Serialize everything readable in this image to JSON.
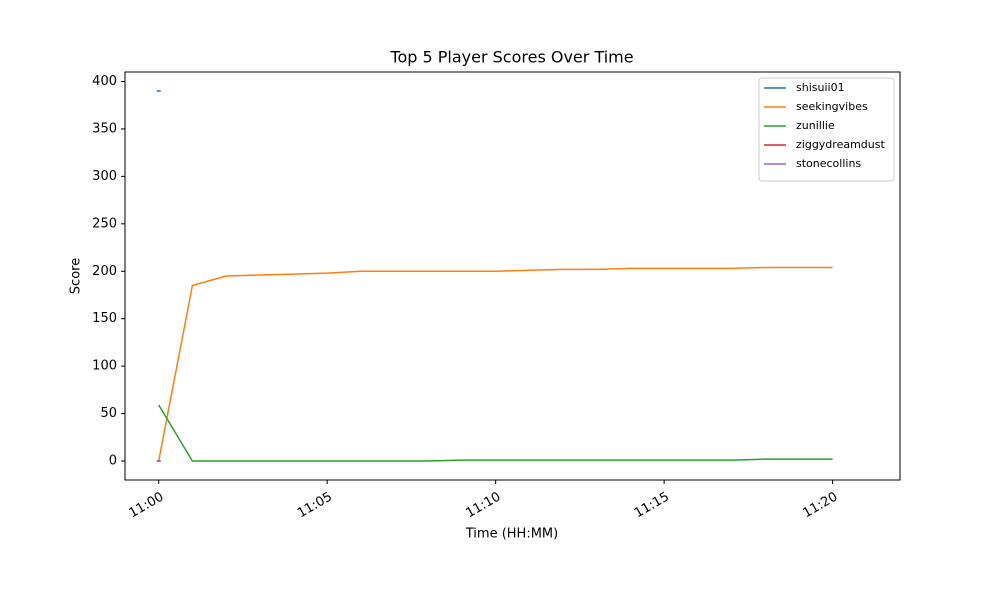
{
  "chart_data": {
    "type": "line",
    "title": "Top 5 Player Scores Over Time",
    "x_label": "Time (HH:MM)",
    "y_label": "Score",
    "x": [
      "11:00",
      "11:01",
      "11:02",
      "11:03",
      "11:04",
      "11:05",
      "11:06",
      "11:07",
      "11:08",
      "11:09",
      "11:10",
      "11:11",
      "11:12",
      "11:13",
      "11:14",
      "11:15",
      "11:16",
      "11:17",
      "11:18",
      "11:19",
      "11:20"
    ],
    "series": [
      {
        "name": "shisuii01",
        "color": "#1f77b4",
        "values": [
          390,
          null,
          null,
          null,
          null,
          null,
          null,
          null,
          null,
          null,
          null,
          null,
          null,
          null,
          null,
          null,
          null,
          null,
          null,
          null,
          null
        ]
      },
      {
        "name": "seekingvibes",
        "color": "#ff7f0e",
        "values": [
          0,
          185,
          195,
          196,
          197,
          198,
          200,
          200,
          200,
          200,
          200,
          201,
          202,
          202,
          203,
          203,
          203,
          203,
          204,
          204,
          204
        ]
      },
      {
        "name": "zunillie",
        "color": "#2ca02c",
        "values": [
          59,
          0,
          0,
          0,
          0,
          0,
          0,
          0,
          0,
          1,
          1,
          1,
          1,
          1,
          1,
          1,
          1,
          1,
          2,
          2,
          2
        ]
      },
      {
        "name": "ziggydreamdust",
        "color": "#d62728",
        "values": [
          0,
          null,
          null,
          null,
          null,
          null,
          null,
          null,
          null,
          null,
          null,
          null,
          null,
          null,
          null,
          null,
          null,
          null,
          null,
          null,
          null
        ]
      },
      {
        "name": "stonecollins",
        "color": "#9467bd",
        "values": [
          0,
          null,
          null,
          null,
          null,
          null,
          null,
          null,
          null,
          null,
          null,
          null,
          null,
          null,
          null,
          null,
          null,
          null,
          null,
          null,
          null
        ]
      }
    ],
    "xlim": [
      "10:59",
      "11:22"
    ],
    "xticks": [
      "11:00",
      "11:05",
      "11:10",
      "11:15",
      "11:20"
    ],
    "ylim": [
      -20,
      410
    ],
    "yticks": [
      0,
      50,
      100,
      150,
      200,
      250,
      300,
      350,
      400
    ],
    "legend": "upper right"
  }
}
